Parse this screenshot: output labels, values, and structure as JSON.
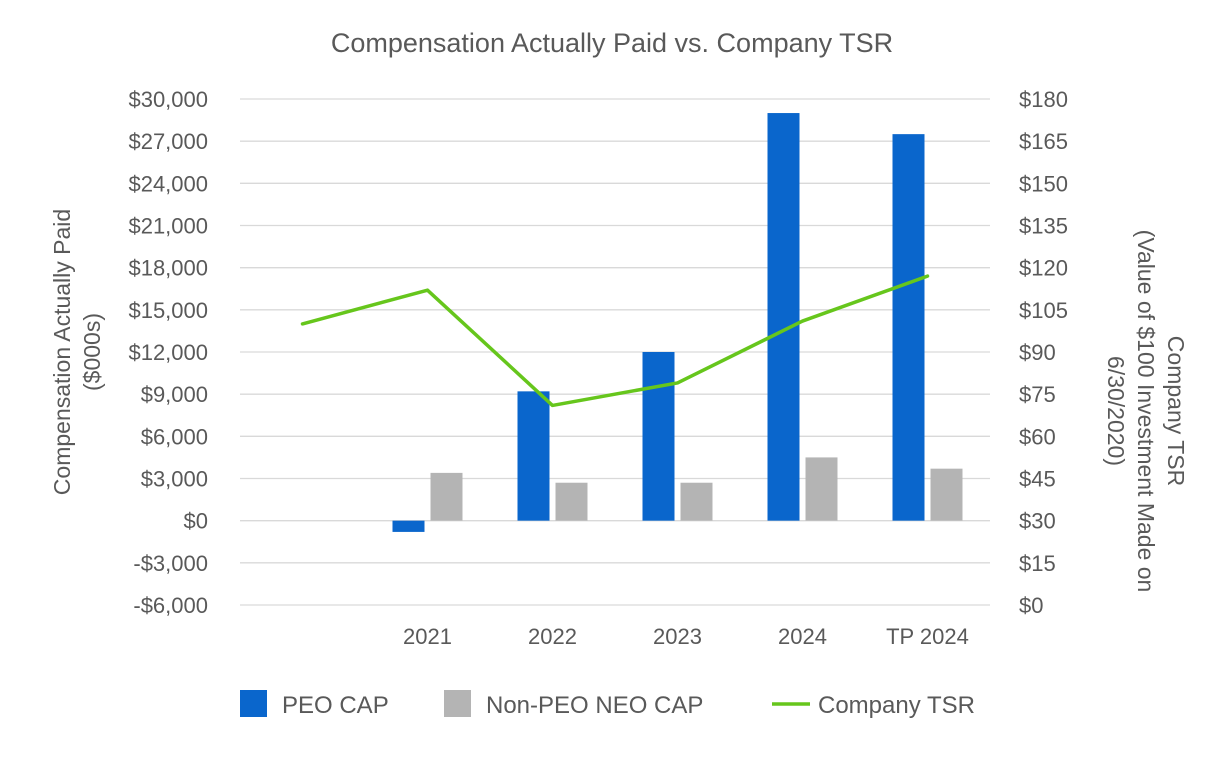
{
  "chart_data": {
    "type": "bar",
    "title": "Compensation Actually Paid vs. Company TSR",
    "categories": [
      "",
      "2021",
      "2022",
      "2023",
      "2024",
      "TP 2024"
    ],
    "y_left": {
      "label_lines": [
        "Compensation Actually Paid",
        "($000s)"
      ],
      "ylim": [
        -6000,
        30000
      ],
      "ticks": [
        30000,
        27000,
        24000,
        21000,
        18000,
        15000,
        12000,
        9000,
        6000,
        3000,
        0,
        -3000,
        -6000
      ],
      "tick_labels": [
        "$30,000",
        "$27,000",
        "$24,000",
        "$21,000",
        "$18,000",
        "$15,000",
        "$12,000",
        "$9,000",
        "$6,000",
        "$3,000",
        "$0",
        "-$3,000",
        "-$6,000"
      ]
    },
    "y_right": {
      "label_lines": [
        "Company TSR",
        "(Value of $100 Investment Made on",
        "6/30/2020)"
      ],
      "ylim": [
        0,
        180
      ],
      "ticks": [
        180,
        165,
        150,
        135,
        120,
        105,
        90,
        75,
        60,
        45,
        30,
        15,
        0
      ],
      "tick_labels": [
        "$180",
        "$165",
        "$150",
        "$135",
        "$120",
        "$105",
        "$90",
        "$75",
        "$60",
        "$45",
        "$30",
        "$15",
        "$0"
      ]
    },
    "series": [
      {
        "name": "PEO CAP",
        "type": "bar",
        "axis": "left",
        "color": "#0a66cc",
        "values": [
          null,
          -800,
          9200,
          12000,
          29000,
          27500
        ]
      },
      {
        "name": "Non-PEO NEO CAP",
        "type": "bar",
        "axis": "left",
        "color": "#b4b4b4",
        "values": [
          null,
          3400,
          2700,
          2700,
          4500,
          3700
        ]
      },
      {
        "name": "Company TSR",
        "type": "line",
        "axis": "right",
        "color": "#66c61c",
        "values": [
          100,
          112,
          71,
          79,
          101,
          117
        ]
      }
    ],
    "legend": {
      "position": "bottom",
      "items": [
        "PEO CAP",
        "Non-PEO NEO CAP",
        "Company TSR"
      ]
    }
  }
}
